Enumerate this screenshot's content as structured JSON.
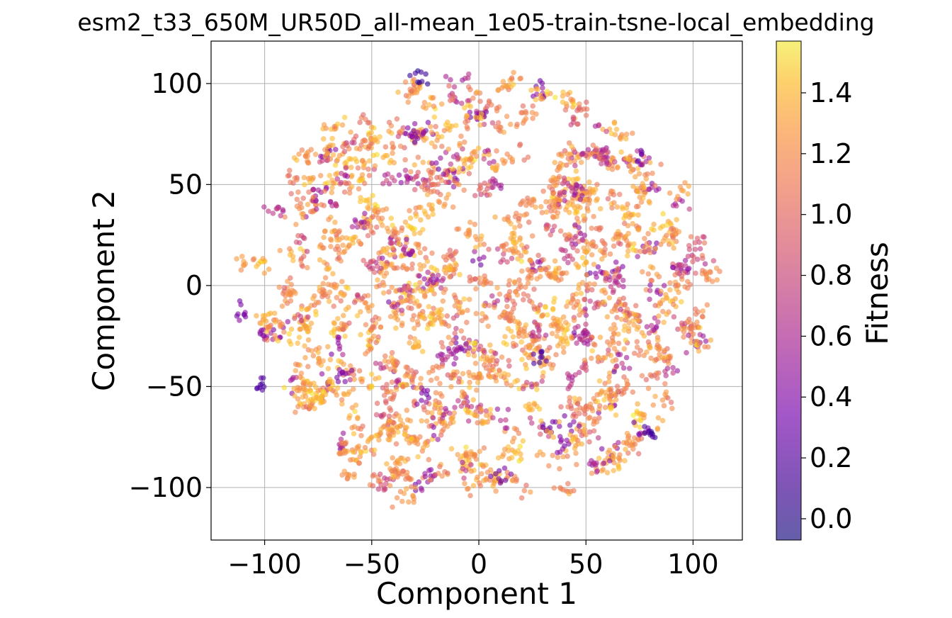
{
  "chart_data": {
    "type": "scatter",
    "title": "esm2_t33_650M_UR50D_all-mean_1e05-train-tsne-local_embedding",
    "xlabel": "Component 1",
    "ylabel": "Component 2",
    "xlim": [
      -125,
      123
    ],
    "ylim": [
      -126,
      121
    ],
    "xticks": [
      {
        "value": -100,
        "label": "−100"
      },
      {
        "value": -50,
        "label": "−50"
      },
      {
        "value": 0,
        "label": "0"
      },
      {
        "value": 50,
        "label": "50"
      },
      {
        "value": 100,
        "label": "100"
      }
    ],
    "yticks": [
      {
        "value": -100,
        "label": "−100"
      },
      {
        "value": -50,
        "label": "−50"
      },
      {
        "value": 0,
        "label": "0"
      },
      {
        "value": 50,
        "label": "50"
      },
      {
        "value": 100,
        "label": "100"
      }
    ],
    "grid": true,
    "colormap": "plasma",
    "point_alpha": 0.6,
    "colorbar": {
      "label": "Fitness",
      "range": [
        -0.07,
        1.57
      ],
      "ticks": [
        {
          "value": 0.0,
          "label": "0.0"
        },
        {
          "value": 0.2,
          "label": "0.2"
        },
        {
          "value": 0.4,
          "label": "0.4"
        },
        {
          "value": 0.6,
          "label": "0.6"
        },
        {
          "value": 0.8,
          "label": "0.8"
        },
        {
          "value": 1.0,
          "label": "1.0"
        },
        {
          "value": 1.2,
          "label": "1.2"
        },
        {
          "value": 1.4,
          "label": "1.4"
        }
      ]
    },
    "point_cloud": {
      "center": [
        0,
        -3
      ],
      "radius": 110,
      "dominant_fitness": [
        0.85,
        1.15
      ],
      "low_fitness_fraction": 0.25
    },
    "clusters": [
      {
        "x": -28,
        "y": 104,
        "fitness": 0.05
      },
      {
        "x": 80,
        "y": -73,
        "fitness": 0.1
      },
      {
        "x": -102,
        "y": -50,
        "fitness": 0.1
      },
      {
        "x": 28,
        "y": -35,
        "fitness": 0.1
      },
      {
        "x": -25,
        "y": -55,
        "fitness": 0.3
      },
      {
        "x": -110,
        "y": -15,
        "fitness": 0.3
      },
      {
        "x": 10,
        "y": -95,
        "fitness": 0.25
      },
      {
        "x": 40,
        "y": -78,
        "fitness": 0.3
      },
      {
        "x": -110,
        "y": 12,
        "fitness": 1.0
      },
      {
        "x": -80,
        "y": 63,
        "fitness": 1.0
      },
      {
        "x": 108,
        "y": 5,
        "fitness": 1.0
      },
      {
        "x": 95,
        "y": 45,
        "fitness": 1.0
      },
      {
        "x": -60,
        "y": -95,
        "fitness": 1.0
      },
      {
        "x": 65,
        "y": -85,
        "fitness": 1.0
      },
      {
        "x": -35,
        "y": -105,
        "fitness": 1.0
      }
    ]
  }
}
